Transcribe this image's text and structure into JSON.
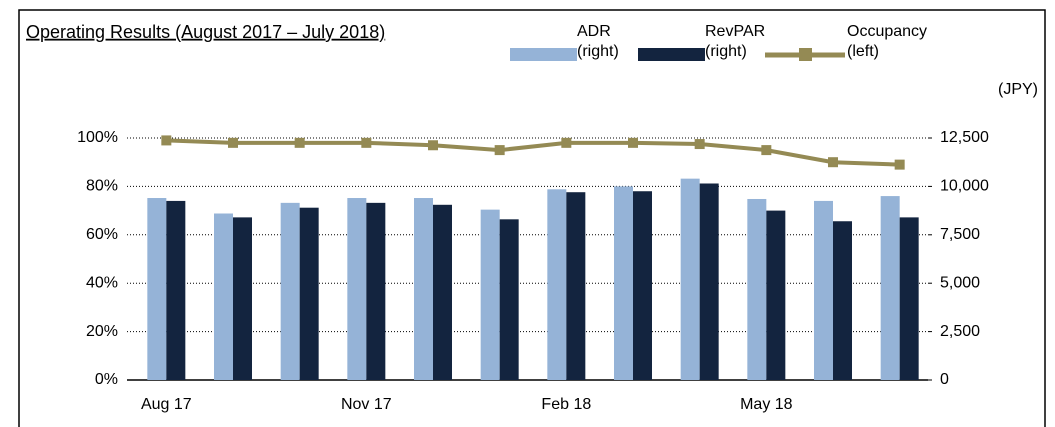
{
  "chart_data": {
    "type": "bar_line",
    "title": "Operating Results (August 2017 – July 2018)",
    "y2_label": "(JPY)",
    "categories": [
      "Aug 17",
      null,
      null,
      "Nov 17",
      null,
      null,
      "Feb 18",
      null,
      null,
      "May 18",
      null,
      null
    ],
    "series": [
      {
        "name": "ADR (right)",
        "type": "bar",
        "axis": "y2",
        "color": "#95b3d7",
        "values": [
          9400,
          8600,
          9150,
          9400,
          9400,
          8800,
          9850,
          10000,
          10400,
          9350,
          9250,
          9500
        ]
      },
      {
        "name": "RevPAR (right)",
        "type": "bar",
        "axis": "y2",
        "color": "#13243f",
        "values": [
          9250,
          8400,
          8900,
          9150,
          9050,
          8300,
          9700,
          9750,
          10150,
          8750,
          8200,
          8400
        ]
      },
      {
        "name": "Occupancy (left)",
        "type": "line",
        "axis": "y",
        "color": "#948a54",
        "values": [
          99,
          98,
          98,
          98,
          97,
          95,
          98,
          98,
          97.5,
          95,
          90,
          89
        ]
      }
    ],
    "ylim": [
      0,
      100
    ],
    "yticks": [
      {
        "value": 0,
        "label": "0%"
      },
      {
        "value": 20,
        "label": "20%"
      },
      {
        "value": 40,
        "label": "40%"
      },
      {
        "value": 60,
        "label": "60%"
      },
      {
        "value": 80,
        "label": "80%"
      },
      {
        "value": 100,
        "label": "100%"
      }
    ],
    "y2lim": [
      0,
      12500
    ],
    "y2ticks": [
      0,
      {
        "value": 2500,
        "label": "2,500"
      },
      {
        "value": 5000,
        "label": "5,000"
      },
      {
        "value": 7500,
        "label": "7,500"
      },
      {
        "value": 10000,
        "label": "10,000"
      },
      {
        "value": 12500,
        "label": "12,500"
      }
    ],
    "grid": true
  }
}
